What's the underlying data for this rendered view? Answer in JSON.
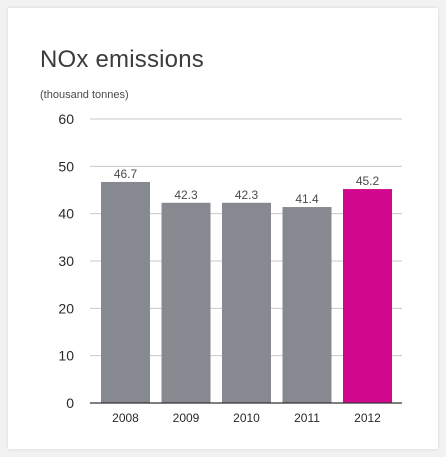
{
  "chart_data": {
    "type": "bar",
    "title": "NOx emissions",
    "subtitle": "(thousand tonnes)",
    "categories": [
      "2008",
      "2009",
      "2010",
      "2011",
      "2012"
    ],
    "values": [
      46.7,
      42.3,
      42.3,
      41.4,
      45.2
    ],
    "data_labels": [
      "46.7",
      "42.3",
      "42.3",
      "41.4",
      "45.2"
    ],
    "ylim": [
      0,
      60
    ],
    "yticks": [
      0,
      10,
      20,
      30,
      40,
      50,
      60
    ],
    "grid": true,
    "colors": {
      "default_bar": "#868990",
      "highlight_bar": "#d1088e",
      "gridline": "#c8c8c8",
      "axis": "#333333"
    },
    "highlight_index": 4
  }
}
